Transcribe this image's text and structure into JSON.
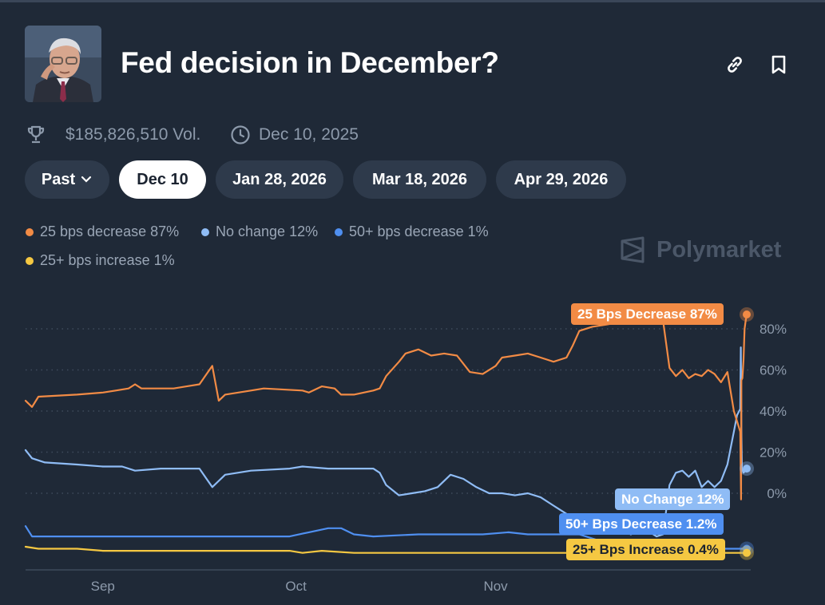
{
  "market": {
    "title": "Fed decision in December?",
    "volume": "$185,826,510 Vol.",
    "end_date": "Dec 10, 2025"
  },
  "icons": [
    "trophy-icon",
    "clock-icon",
    "link-icon",
    "bookmark-icon",
    "chevron-down-icon",
    "polymarket-logo-icon"
  ],
  "date_tabs": {
    "past_label": "Past",
    "tabs": [
      "Dec 10",
      "Jan 28, 2026",
      "Mar 18, 2026",
      "Apr 29, 2026"
    ],
    "selected": "Dec 10"
  },
  "legend": [
    {
      "label": "25 bps decrease 87%",
      "color": "#f28b45"
    },
    {
      "label": "No change 12%",
      "color": "#8fbcf5"
    },
    {
      "label": "50+ bps decrease 1%",
      "color": "#4f8ff0"
    },
    {
      "label": "25+ bps increase 1%",
      "color": "#f5c842"
    }
  ],
  "watermark": "Polymarket",
  "end_tags": [
    {
      "label": "25 Bps Decrease 87%",
      "color": "#f28b45"
    },
    {
      "label": "No Change 12%",
      "color": "#8fbcf5"
    },
    {
      "label": "50+ Bps Decrease 1.2%",
      "color": "#4f8ff0"
    },
    {
      "label": "25+ Bps Increase 0.4%",
      "color": "#f5c842"
    }
  ],
  "chart_data": {
    "type": "line",
    "x_ticks": [
      "Sep",
      "Oct",
      "Nov"
    ],
    "y_ticks": [
      "80%",
      "60%",
      "40%",
      "20%",
      "0%"
    ],
    "ylim": [
      -31,
      90
    ],
    "x_range": [
      "2025-08-20",
      "2025-12-10"
    ],
    "grid": true,
    "series": [
      {
        "name": "25 bps decrease",
        "color": "#f28b45",
        "points": [
          [
            "2025-08-20",
            45
          ],
          [
            "2025-08-21",
            42
          ],
          [
            "2025-08-22",
            47
          ],
          [
            "2025-08-28",
            48
          ],
          [
            "2025-09-01",
            49
          ],
          [
            "2025-09-03",
            50
          ],
          [
            "2025-09-05",
            51
          ],
          [
            "2025-09-06",
            53
          ],
          [
            "2025-09-07",
            51
          ],
          [
            "2025-09-12",
            51
          ],
          [
            "2025-09-14",
            52
          ],
          [
            "2025-09-16",
            53
          ],
          [
            "2025-09-18",
            62
          ],
          [
            "2025-09-19",
            45
          ],
          [
            "2025-09-20",
            48
          ],
          [
            "2025-09-24",
            50
          ],
          [
            "2025-09-26",
            51
          ],
          [
            "2025-10-02",
            50
          ],
          [
            "2025-10-03",
            49
          ],
          [
            "2025-10-05",
            52
          ],
          [
            "2025-10-07",
            51
          ],
          [
            "2025-10-08",
            48
          ],
          [
            "2025-10-10",
            48
          ],
          [
            "2025-10-13",
            50
          ],
          [
            "2025-10-14",
            51
          ],
          [
            "2025-10-15",
            57
          ],
          [
            "2025-10-17",
            64
          ],
          [
            "2025-10-18",
            68
          ],
          [
            "2025-10-20",
            70
          ],
          [
            "2025-10-22",
            67
          ],
          [
            "2025-10-24",
            68
          ],
          [
            "2025-10-26",
            67
          ],
          [
            "2025-10-28",
            59
          ],
          [
            "2025-10-30",
            58
          ],
          [
            "2025-11-01",
            62
          ],
          [
            "2025-11-02",
            66
          ],
          [
            "2025-11-04",
            67
          ],
          [
            "2025-11-06",
            68
          ],
          [
            "2025-11-08",
            66
          ],
          [
            "2025-11-10",
            64
          ],
          [
            "2025-11-12",
            66
          ],
          [
            "2025-11-13",
            72
          ],
          [
            "2025-11-14",
            79
          ],
          [
            "2025-11-16",
            81
          ],
          [
            "2025-11-18",
            82
          ],
          [
            "2025-11-20",
            83
          ],
          [
            "2025-11-22",
            85
          ],
          [
            "2025-11-24",
            86
          ],
          [
            "2025-11-25",
            88
          ],
          [
            "2025-11-26",
            89
          ],
          [
            "2025-11-27",
            84
          ],
          [
            "2025-11-28",
            61
          ],
          [
            "2025-11-29",
            57
          ],
          [
            "2025-11-30",
            60
          ],
          [
            "2025-12-01",
            56
          ],
          [
            "2025-12-02",
            58
          ],
          [
            "2025-12-03",
            57
          ],
          [
            "2025-12-04",
            60
          ],
          [
            "2025-12-05",
            58
          ],
          [
            "2025-12-06",
            54
          ],
          [
            "2025-12-07",
            59
          ],
          [
            "2025-12-08",
            40
          ],
          [
            "2025-12-08T12",
            35
          ],
          [
            "2025-12-09",
            30
          ],
          [
            "2025-12-09T03",
            -3
          ],
          [
            "2025-12-09T04",
            55
          ],
          [
            "2025-12-09T08",
            56
          ],
          [
            "2025-12-09T12",
            65
          ],
          [
            "2025-12-09T16",
            80
          ],
          [
            "2025-12-09T20",
            84
          ],
          [
            "2025-12-10",
            87
          ]
        ]
      },
      {
        "name": "No change",
        "color": "#8fbcf5",
        "points": [
          [
            "2025-08-20",
            21
          ],
          [
            "2025-08-21",
            17
          ],
          [
            "2025-08-23",
            15
          ],
          [
            "2025-08-28",
            14
          ],
          [
            "2025-09-01",
            13
          ],
          [
            "2025-09-04",
            13
          ],
          [
            "2025-09-06",
            11
          ],
          [
            "2025-09-10",
            12
          ],
          [
            "2025-09-14",
            12
          ],
          [
            "2025-09-16",
            12
          ],
          [
            "2025-09-18",
            3
          ],
          [
            "2025-09-19",
            6
          ],
          [
            "2025-09-20",
            9
          ],
          [
            "2025-09-24",
            11
          ],
          [
            "2025-09-30",
            12
          ],
          [
            "2025-10-02",
            13
          ],
          [
            "2025-10-06",
            12
          ],
          [
            "2025-10-10",
            12
          ],
          [
            "2025-10-13",
            12
          ],
          [
            "2025-10-14",
            10
          ],
          [
            "2025-10-15",
            4
          ],
          [
            "2025-10-17",
            -1
          ],
          [
            "2025-10-19",
            0
          ],
          [
            "2025-10-21",
            1
          ],
          [
            "2025-10-23",
            3
          ],
          [
            "2025-10-25",
            9
          ],
          [
            "2025-10-27",
            7
          ],
          [
            "2025-10-29",
            3
          ],
          [
            "2025-10-31",
            0
          ],
          [
            "2025-11-02",
            0
          ],
          [
            "2025-11-04",
            -1
          ],
          [
            "2025-11-06",
            0
          ],
          [
            "2025-11-08",
            -2
          ],
          [
            "2025-11-10",
            -6
          ],
          [
            "2025-11-12",
            -10
          ],
          [
            "2025-11-14",
            -14
          ],
          [
            "2025-11-16",
            -17
          ],
          [
            "2025-11-18",
            -18
          ],
          [
            "2025-11-20",
            -17
          ],
          [
            "2025-11-22",
            -20
          ],
          [
            "2025-11-24",
            -17
          ],
          [
            "2025-11-26",
            -21
          ],
          [
            "2025-11-27",
            -20
          ],
          [
            "2025-11-28",
            4
          ],
          [
            "2025-11-29",
            10
          ],
          [
            "2025-11-30",
            11
          ],
          [
            "2025-12-01",
            8
          ],
          [
            "2025-12-02",
            11
          ],
          [
            "2025-12-03",
            3
          ],
          [
            "2025-12-04",
            6
          ],
          [
            "2025-12-05",
            3
          ],
          [
            "2025-12-06",
            6
          ],
          [
            "2025-12-07",
            14
          ],
          [
            "2025-12-08",
            30
          ],
          [
            "2025-12-08T12",
            38
          ],
          [
            "2025-12-09",
            41
          ],
          [
            "2025-12-09T02",
            71
          ],
          [
            "2025-12-09T04",
            30
          ],
          [
            "2025-12-09T06",
            12
          ],
          [
            "2025-12-09T12",
            10
          ],
          [
            "2025-12-09T18",
            11
          ],
          [
            "2025-12-10",
            12
          ]
        ]
      },
      {
        "name": "50+ bps decrease",
        "color": "#4f8ff0",
        "points": [
          [
            "2025-08-20",
            -16
          ],
          [
            "2025-08-21",
            -21
          ],
          [
            "2025-08-25",
            -21
          ],
          [
            "2025-09-01",
            -21
          ],
          [
            "2025-09-10",
            -21
          ],
          [
            "2025-09-20",
            -21
          ],
          [
            "2025-09-30",
            -21
          ],
          [
            "2025-10-03",
            -19
          ],
          [
            "2025-10-06",
            -17
          ],
          [
            "2025-10-08",
            -17
          ],
          [
            "2025-10-10",
            -20
          ],
          [
            "2025-10-13",
            -21
          ],
          [
            "2025-10-20",
            -20
          ],
          [
            "2025-10-25",
            -20
          ],
          [
            "2025-10-30",
            -20
          ],
          [
            "2025-11-03",
            -19
          ],
          [
            "2025-11-06",
            -20
          ],
          [
            "2025-11-10",
            -20
          ],
          [
            "2025-11-14",
            -20
          ],
          [
            "2025-11-17",
            -23
          ],
          [
            "2025-11-20",
            -23
          ],
          [
            "2025-11-24",
            -25
          ],
          [
            "2025-11-28",
            -26
          ],
          [
            "2025-12-02",
            -27
          ],
          [
            "2025-12-06",
            -27
          ],
          [
            "2025-12-10",
            -27
          ]
        ]
      },
      {
        "name": "25+ bps increase",
        "color": "#f5c842",
        "points": [
          [
            "2025-08-20",
            -26
          ],
          [
            "2025-08-22",
            -27
          ],
          [
            "2025-08-28",
            -27
          ],
          [
            "2025-09-01",
            -28
          ],
          [
            "2025-09-10",
            -28
          ],
          [
            "2025-09-20",
            -28
          ],
          [
            "2025-09-30",
            -28
          ],
          [
            "2025-10-02",
            -29
          ],
          [
            "2025-10-05",
            -28
          ],
          [
            "2025-10-10",
            -29
          ],
          [
            "2025-10-20",
            -29
          ],
          [
            "2025-10-30",
            -29
          ],
          [
            "2025-11-10",
            -29
          ],
          [
            "2025-11-20",
            -29
          ],
          [
            "2025-11-30",
            -29
          ],
          [
            "2025-12-10",
            -29
          ]
        ]
      }
    ]
  }
}
